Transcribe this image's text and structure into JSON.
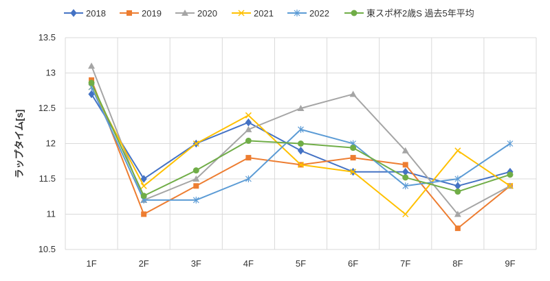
{
  "chart_data": {
    "type": "line",
    "title": "",
    "xlabel": "",
    "ylabel": "ラップタイム[s]",
    "categories": [
      "1F",
      "2F",
      "3F",
      "4F",
      "5F",
      "6F",
      "7F",
      "8F",
      "9F"
    ],
    "ylim": [
      10.5,
      13.5
    ],
    "yticks": [
      10.5,
      11,
      11.5,
      12,
      12.5,
      13,
      13.5
    ],
    "ytick_labels": [
      "10.5",
      "11",
      "11.5",
      "12",
      "12.5",
      "13",
      "13.5"
    ],
    "grid": "vertical and horizontal",
    "legend_position": "top",
    "series": [
      {
        "name": "2018",
        "color": "#4472c4",
        "marker": "diamond",
        "values": [
          12.7,
          11.5,
          12.0,
          12.3,
          11.9,
          11.6,
          11.6,
          11.4,
          11.6
        ]
      },
      {
        "name": "2019",
        "color": "#ed7d31",
        "marker": "square",
        "values": [
          12.9,
          11.0,
          11.4,
          11.8,
          11.7,
          11.8,
          11.7,
          10.8,
          11.4
        ]
      },
      {
        "name": "2020",
        "color": "#a5a5a5",
        "marker": "triangle",
        "values": [
          13.1,
          11.2,
          11.5,
          12.2,
          12.5,
          12.7,
          11.9,
          11.0,
          11.4
        ]
      },
      {
        "name": "2021",
        "color": "#ffc000",
        "marker": "x",
        "values": [
          12.8,
          11.4,
          12.0,
          12.4,
          11.7,
          11.6,
          11.0,
          11.9,
          11.4
        ]
      },
      {
        "name": "2022",
        "color": "#5b9bd5",
        "marker": "star",
        "values": [
          12.8,
          11.2,
          11.2,
          11.5,
          12.2,
          12.0,
          11.4,
          11.5,
          12.0
        ]
      },
      {
        "name": "東スポ杯2歳S 過去5年平均",
        "color": "#70ad47",
        "marker": "circle",
        "values": [
          12.86,
          11.26,
          11.62,
          12.04,
          12.0,
          11.94,
          11.52,
          11.32,
          11.56
        ]
      }
    ]
  }
}
